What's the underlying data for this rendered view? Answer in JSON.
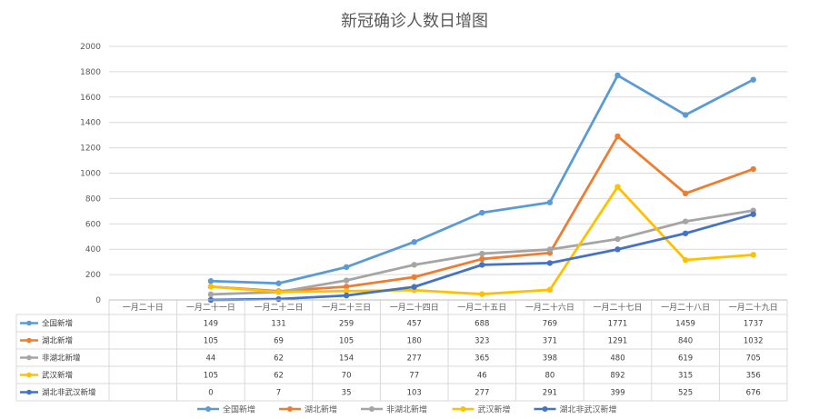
{
  "chart_data": {
    "type": "line",
    "title": "新冠确诊人数日增图",
    "categories": [
      "一月二十日",
      "一月二十一日",
      "一月二十二日",
      "一月二十三日",
      "一月二十四日",
      "一月二十五日",
      "一月二十六日",
      "一月二十七日",
      "一月二十八日",
      "一月二十九日"
    ],
    "ylim": [
      0,
      2000
    ],
    "yticks": [
      0,
      200,
      400,
      600,
      800,
      1000,
      1200,
      1400,
      1600,
      1800,
      2000
    ],
    "grid": true,
    "legend_position": "bottom",
    "data_table": true,
    "series": [
      {
        "name": "全国新增",
        "color": "#5B9BD5",
        "values": [
          null,
          149,
          131,
          259,
          457,
          688,
          769,
          1771,
          1459,
          1737
        ]
      },
      {
        "name": "湖北新增",
        "color": "#ED7D31",
        "values": [
          null,
          105,
          69,
          105,
          180,
          323,
          371,
          1291,
          840,
          1032
        ]
      },
      {
        "name": "非湖北新增",
        "color": "#A5A5A5",
        "values": [
          null,
          44,
          62,
          154,
          277,
          365,
          398,
          480,
          619,
          705
        ]
      },
      {
        "name": "武汉新增",
        "color": "#FFC000",
        "values": [
          null,
          105,
          62,
          70,
          77,
          46,
          80,
          892,
          315,
          356
        ]
      },
      {
        "name": "湖北非武汉新增",
        "color": "#4472C4",
        "values": [
          null,
          0,
          7,
          35,
          103,
          277,
          291,
          399,
          525,
          676
        ]
      }
    ]
  }
}
